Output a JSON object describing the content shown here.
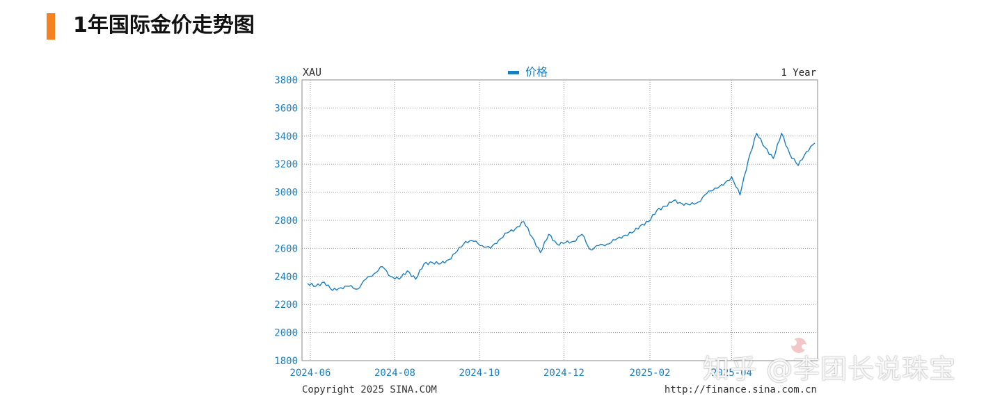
{
  "header": {
    "title": "1年国际金价走势图",
    "accent_color": "#f5821f"
  },
  "chart_data": {
    "type": "line",
    "symbol": "XAU",
    "legend_label": "价格",
    "range_label": "1 Year",
    "ylim": [
      1800,
      3800
    ],
    "y_ticks": [
      1800,
      2000,
      2200,
      2400,
      2600,
      2800,
      3000,
      3200,
      3400,
      3600,
      3800
    ],
    "x_ticks": [
      "2024-06",
      "2024-08",
      "2024-10",
      "2024-12",
      "2025-02",
      "2025-04"
    ],
    "grid": true,
    "legend_position": "top-center",
    "colors": {
      "line": "#1a7fc1",
      "tick_text": "#1a7fc1",
      "grid": "#9a9a9a"
    },
    "footer_left": "Copyright 2025 SINA.COM",
    "footer_right": "http://finance.sina.com.cn",
    "series": [
      {
        "x": [
          "2024-05-30",
          "2024-06-05",
          "2024-06-11",
          "2024-06-17",
          "2024-06-23",
          "2024-06-29",
          "2024-07-05",
          "2024-07-11",
          "2024-07-17",
          "2024-07-23",
          "2024-07-29",
          "2024-08-04",
          "2024-08-10",
          "2024-08-16",
          "2024-08-22",
          "2024-08-28",
          "2024-09-03",
          "2024-09-09",
          "2024-09-15",
          "2024-09-21",
          "2024-09-27",
          "2024-10-03",
          "2024-10-09",
          "2024-10-15",
          "2024-10-21",
          "2024-10-27",
          "2024-11-02",
          "2024-11-08",
          "2024-11-14",
          "2024-11-20",
          "2024-11-26",
          "2024-12-02",
          "2024-12-08",
          "2024-12-14",
          "2024-12-20",
          "2024-12-26",
          "2025-01-01",
          "2025-01-07",
          "2025-01-13",
          "2025-01-19",
          "2025-01-25",
          "2025-01-31",
          "2025-02-06",
          "2025-02-12",
          "2025-02-18",
          "2025-02-24",
          "2025-03-02",
          "2025-03-08",
          "2025-03-14",
          "2025-03-20",
          "2025-03-26",
          "2025-04-01",
          "2025-04-07",
          "2025-04-13",
          "2025-04-19",
          "2025-04-25",
          "2025-05-01",
          "2025-05-07",
          "2025-05-13",
          "2025-05-19",
          "2025-05-25",
          "2025-05-31"
        ],
        "values": [
          2350,
          2330,
          2360,
          2300,
          2320,
          2330,
          2310,
          2380,
          2420,
          2470,
          2400,
          2380,
          2440,
          2380,
          2490,
          2500,
          2490,
          2520,
          2580,
          2650,
          2650,
          2620,
          2600,
          2660,
          2710,
          2740,
          2790,
          2680,
          2570,
          2700,
          2630,
          2640,
          2650,
          2700,
          2590,
          2620,
          2630,
          2660,
          2690,
          2710,
          2760,
          2790,
          2870,
          2900,
          2940,
          2920,
          2910,
          2930,
          2990,
          3030,
          3050,
          3110,
          2980,
          3230,
          3420,
          3320,
          3240,
          3420,
          3270,
          3190,
          3290,
          3350
        ]
      }
    ]
  },
  "watermark": "知乎 @李团长说珠宝"
}
